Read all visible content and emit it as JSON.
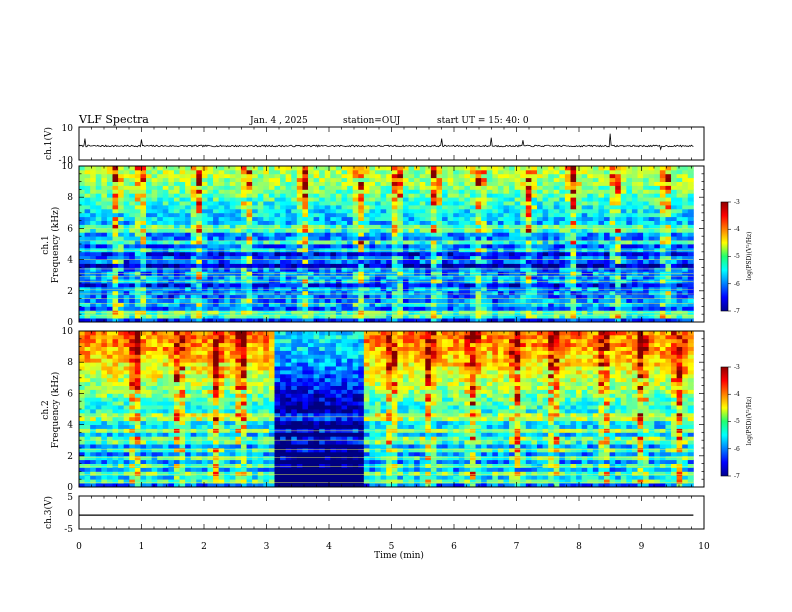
{
  "header": {
    "title": "VLF Spectra",
    "date": "Jan. 4 , 2025",
    "station": "station=OUJ",
    "start": "start UT = 15: 40: 0"
  },
  "colors": {
    "axis": "#000000",
    "spectrum_low": "#00008f",
    "spectrum_high": "#8f0000",
    "trace": "#000000"
  },
  "chart_data": [
    {
      "type": "line",
      "name": "ch1-waveform",
      "ylabel": "ch.1(V)",
      "ylim": [
        -10,
        10
      ],
      "ytick_labels": [
        "10",
        "-10"
      ],
      "xlim": [
        0,
        10
      ],
      "baseline": -1.5,
      "noise_amplitude": 0.5,
      "spikes": [
        {
          "t": 0.1,
          "v": 3
        },
        {
          "t": 1.0,
          "v": 2.5
        },
        {
          "t": 5.8,
          "v": 3
        },
        {
          "t": 6.6,
          "v": 3.5
        },
        {
          "t": 7.1,
          "v": 2
        },
        {
          "t": 8.5,
          "v": 6
        },
        {
          "t": 9.3,
          "v": -3.5
        }
      ]
    },
    {
      "type": "heatmap",
      "name": "ch1-spectrogram",
      "ylabel": "ch.1",
      "ylabel2": "Frequency (kHz)",
      "ylim": [
        0,
        10
      ],
      "yticks": [
        "0",
        "2",
        "4",
        "6",
        "8",
        "10"
      ],
      "xlim": [
        0,
        9.83
      ],
      "color_range": [
        -7,
        -3
      ],
      "colorbar_label": "log(PSD)(V²/Hz)",
      "colorbar_ticks": [
        "-3",
        "-4",
        "-5",
        "-6",
        "-7"
      ],
      "profile": [
        {
          "f": 0,
          "v": -6.6
        },
        {
          "f": 0.5,
          "v": -5.8
        },
        {
          "f": 1,
          "v": -6.3
        },
        {
          "f": 1.5,
          "v": -6.8
        },
        {
          "f": 2,
          "v": -6.7
        },
        {
          "f": 2.5,
          "v": -6.5
        },
        {
          "f": 3,
          "v": -6.6
        },
        {
          "f": 3.5,
          "v": -6.8
        },
        {
          "f": 4,
          "v": -6.9
        },
        {
          "f": 4.5,
          "v": -6.5
        },
        {
          "f": 5,
          "v": -6.1
        },
        {
          "f": 6,
          "v": -5.9
        },
        {
          "f": 7,
          "v": -5.6
        },
        {
          "f": 8,
          "v": -5.2
        },
        {
          "f": 9,
          "v": -4.9
        },
        {
          "f": 10,
          "v": -4.8
        }
      ],
      "lines_khz": [
        0.4,
        0.6,
        1.2,
        1.5,
        1.8,
        2.1,
        2.6,
        2.9,
        3.1,
        3.4,
        4.0,
        4.6,
        5.2,
        6.0
      ],
      "dark_bands": [],
      "bursts_min": [
        0.6,
        1.0,
        1.9,
        2.7,
        3.6,
        4.5,
        5.1,
        5.7,
        6.4,
        7.2,
        7.9,
        8.6,
        9.4
      ],
      "seed": 11
    },
    {
      "type": "heatmap",
      "name": "ch2-spectrogram",
      "ylabel": "ch.2",
      "ylabel2": "Frequency (kHz)",
      "ylim": [
        0,
        10
      ],
      "yticks": [
        "0",
        "2",
        "4",
        "6",
        "8",
        "10"
      ],
      "xlim": [
        0,
        9.83
      ],
      "color_range": [
        -7,
        -3
      ],
      "colorbar_label": "log(PSD)(V²/Hz)",
      "colorbar_ticks": [
        "-3",
        "-4",
        "-5",
        "-6",
        "-7"
      ],
      "profile": [
        {
          "f": 0,
          "v": -6.3
        },
        {
          "f": 0.6,
          "v": -5.6
        },
        {
          "f": 1,
          "v": -5.9
        },
        {
          "f": 2,
          "v": -6.0
        },
        {
          "f": 3,
          "v": -5.8
        },
        {
          "f": 4,
          "v": -5.6
        },
        {
          "f": 5,
          "v": -5.4
        },
        {
          "f": 6,
          "v": -5.0
        },
        {
          "f": 7,
          "v": -4.7
        },
        {
          "f": 8,
          "v": -4.4
        },
        {
          "f": 9,
          "v": -4.1
        },
        {
          "f": 10,
          "v": -4.0
        }
      ],
      "lines_khz": [
        0.3,
        0.8,
        1.3,
        1.9,
        2.4,
        3.0,
        3.6,
        4.5
      ],
      "dark_bands": [
        {
          "t0": 3.15,
          "t1": 4.55,
          "f0": 0,
          "f1": 10,
          "drop": 1.5
        },
        {
          "t0": 3.15,
          "t1": 4.55,
          "f0": 0.2,
          "f1": 1.1,
          "drop": 3.0
        }
      ],
      "bursts_min": [
        0.9,
        1.6,
        2.2,
        2.6,
        5.0,
        5.6,
        6.3,
        7.0,
        7.6,
        8.4,
        9.0,
        9.6
      ],
      "seed": 23
    },
    {
      "type": "line",
      "name": "ch3-waveform",
      "ylabel": "ch.3(V)",
      "ylim": [
        -5,
        5
      ],
      "ytick_labels": [
        "5",
        "0",
        "-5"
      ],
      "xlim": [
        0,
        9.83
      ],
      "baseline": -0.8,
      "noise_amplitude": 0,
      "spikes": []
    }
  ],
  "time_axis": {
    "xlabel": "Time (min)",
    "ticks": [
      "0",
      "1",
      "2",
      "3",
      "4",
      "5",
      "6",
      "7",
      "8",
      "9",
      "10"
    ]
  }
}
